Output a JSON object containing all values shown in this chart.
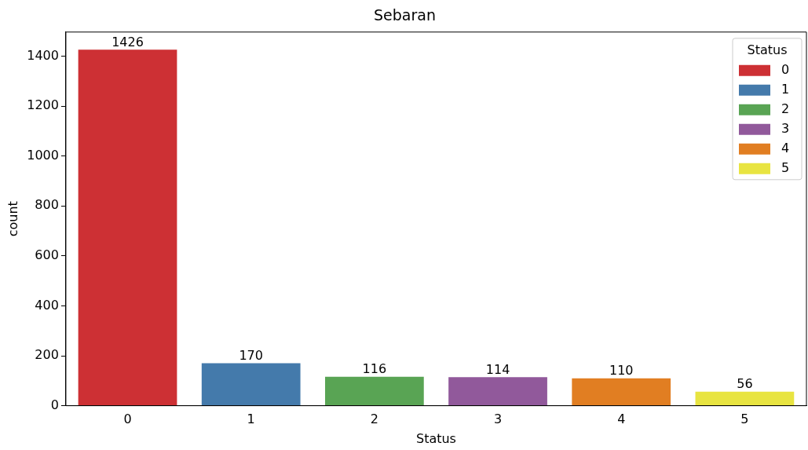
{
  "chart_data": {
    "type": "bar",
    "title": "Sebaran",
    "xlabel": "Status",
    "ylabel": "count",
    "legend_title": "Status",
    "legend": "top right",
    "grid": false,
    "data_labels": true,
    "categories": [
      "0",
      "1",
      "2",
      "3",
      "4",
      "5"
    ],
    "ylim": [
      0,
      1497
    ],
    "yticks": [
      0,
      200,
      400,
      600,
      800,
      1000,
      1200,
      1400
    ],
    "series": [
      {
        "name": "0",
        "color": "#cd3034",
        "values": [
          1426,
          null,
          null,
          null,
          null,
          null
        ]
      },
      {
        "name": "1",
        "color": "#447aab",
        "values": [
          null,
          170,
          null,
          null,
          null,
          null
        ]
      },
      {
        "name": "2",
        "color": "#59a454",
        "values": [
          null,
          null,
          116,
          null,
          null,
          null
        ]
      },
      {
        "name": "3",
        "color": "#91599b",
        "values": [
          null,
          null,
          null,
          114,
          null,
          null
        ]
      },
      {
        "name": "4",
        "color": "#e17e22",
        "values": [
          null,
          null,
          null,
          null,
          110,
          null
        ]
      },
      {
        "name": "5",
        "color": "#e8e441",
        "values": [
          null,
          null,
          null,
          null,
          null,
          56
        ]
      }
    ]
  }
}
